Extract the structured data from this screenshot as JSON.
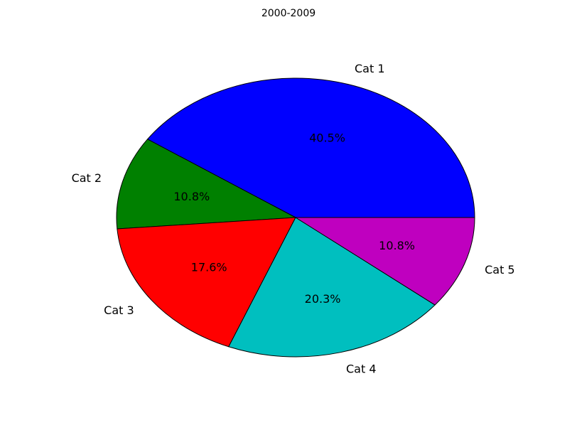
{
  "chart_data": {
    "type": "pie",
    "title": "2000-2009",
    "categories": [
      "Cat 1",
      "Cat 2",
      "Cat 3",
      "Cat 4",
      "Cat 5"
    ],
    "values": [
      40.5,
      10.8,
      17.6,
      20.3,
      10.8
    ],
    "value_labels": [
      "40.5%",
      "10.8%",
      "17.6%",
      "20.3%",
      "10.8%"
    ],
    "colors": [
      "#0000ff",
      "#008000",
      "#ff0000",
      "#00bfbf",
      "#bf00bf"
    ],
    "start_angle_deg": 0,
    "direction": "counterclockwise",
    "legend": "none",
    "grid": false
  }
}
